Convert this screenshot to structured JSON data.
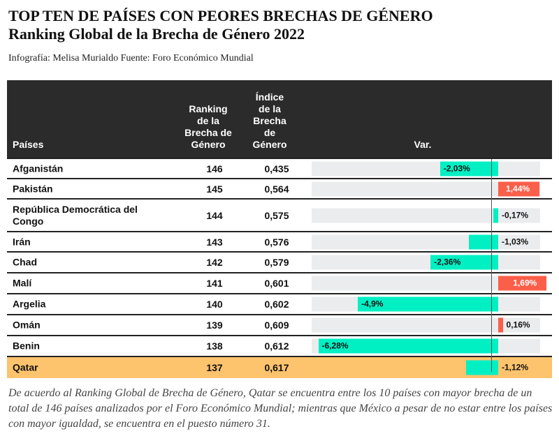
{
  "title": "TOP TEN DE PAÍSES CON PEORES BRECHAS DE GÉNERO",
  "subtitle": "Ranking Global de la Brecha de Género 2022",
  "source": "Infografía: Melisa Murialdo Fuente: Foro Económico Mundial",
  "headers": {
    "country": "Países",
    "ranking": "Ranking de la Brecha de Género",
    "index": "Índice de la Brecha de Género",
    "var": "Var."
  },
  "colors": {
    "negative": "#00f0c4",
    "positive": "#fb5e49",
    "highlight": "#fdc36d",
    "header": "#2b2b2b"
  },
  "chart_data": {
    "type": "table",
    "title": "TOP TEN DE PAÍSES CON PEORES BRECHAS DE GÉNERO",
    "rows": [
      {
        "country": "Afganistán",
        "ranking": "146",
        "index": "0,435",
        "var": -2.03,
        "var_label": "-2,03%"
      },
      {
        "country": "Pakistán",
        "ranking": "145",
        "index": "0,564",
        "var": 1.44,
        "var_label": "1,44%"
      },
      {
        "country": "República Democrática del Congo",
        "ranking": "144",
        "index": "0,575",
        "var": -0.17,
        "var_label": "-0,17%"
      },
      {
        "country": "Irán",
        "ranking": "143",
        "index": "0,576",
        "var": -1.03,
        "var_label": "-1,03%"
      },
      {
        "country": "Chad",
        "ranking": "142",
        "index": "0,579",
        "var": -2.36,
        "var_label": "-2,36%"
      },
      {
        "country": "Malí",
        "ranking": "141",
        "index": "0,601",
        "var": 1.69,
        "var_label": "1,69%"
      },
      {
        "country": "Argelia",
        "ranking": "140",
        "index": "0,602",
        "var": -4.9,
        "var_label": "-4,9%"
      },
      {
        "country": "Omán",
        "ranking": "139",
        "index": "0,609",
        "var": 0.16,
        "var_label": "0,16%"
      },
      {
        "country": "Benin",
        "ranking": "138",
        "index": "0,612",
        "var": -6.28,
        "var_label": "-6,28%"
      },
      {
        "country": "Qatar",
        "ranking": "137",
        "index": "0,617",
        "var": -1.12,
        "var_label": "-1,12%",
        "highlight": true
      }
    ]
  },
  "footnote": "De acuerdo al Ranking Global de Brecha de Género, Qatar se encuentra entre los 10 países con mayor brecha de un total de 146 países analizados por el Foro Económico Mundial; mientras que México a pesar de no estar entre los países con mayor igualdad, se encuentra en el puesto número 31."
}
